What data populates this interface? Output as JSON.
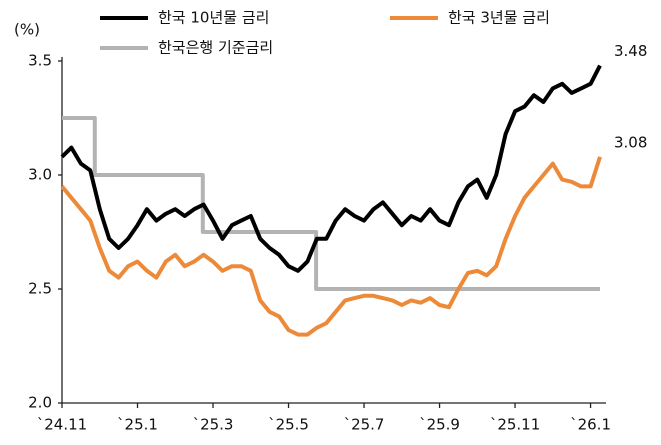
{
  "chart_data": {
    "type": "line",
    "y_label": "(%)",
    "legend": "top",
    "xlim": [
      0,
      14.25
    ],
    "xticks": [
      {
        "value": 0,
        "label": "`24.11"
      },
      {
        "value": 2,
        "label": "`25.1"
      },
      {
        "value": 4,
        "label": "`25.3"
      },
      {
        "value": 6,
        "label": "`25.5"
      },
      {
        "value": 8,
        "label": "`25.7"
      },
      {
        "value": 10,
        "label": "`25.9"
      },
      {
        "value": 12,
        "label": "`25.11"
      },
      {
        "value": 14,
        "label": "`26.1"
      }
    ],
    "ylim": [
      2.0,
      3.5
    ],
    "yticks": [
      {
        "value": 2.0,
        "label": "2.0"
      },
      {
        "value": 2.5,
        "label": "2.5"
      },
      {
        "value": 3.0,
        "label": "3.0"
      },
      {
        "value": 3.5,
        "label": "3.5"
      }
    ],
    "x": [
      0,
      0.25,
      0.5,
      0.75,
      1,
      1.25,
      1.5,
      1.75,
      2,
      2.25,
      2.5,
      2.75,
      3,
      3.25,
      3.5,
      3.75,
      4,
      4.25,
      4.5,
      4.75,
      5,
      5.25,
      5.5,
      5.75,
      6,
      6.25,
      6.5,
      6.75,
      7,
      7.25,
      7.5,
      7.75,
      8,
      8.25,
      8.5,
      8.75,
      9,
      9.25,
      9.5,
      9.75,
      10,
      10.25,
      10.5,
      10.75,
      11,
      11.25,
      11.5,
      11.75,
      12,
      12.25,
      12.5,
      12.75,
      13,
      13.25,
      13.5,
      13.75,
      14,
      14.25
    ],
    "series": [
      {
        "name": "한국 10년물 금리",
        "color": "#000000",
        "values": [
          3.08,
          3.12,
          3.05,
          3.02,
          2.85,
          2.72,
          2.68,
          2.72,
          2.78,
          2.85,
          2.8,
          2.83,
          2.85,
          2.82,
          2.85,
          2.87,
          2.8,
          2.72,
          2.78,
          2.8,
          2.82,
          2.72,
          2.68,
          2.65,
          2.6,
          2.58,
          2.62,
          2.72,
          2.72,
          2.8,
          2.85,
          2.82,
          2.8,
          2.85,
          2.88,
          2.83,
          2.78,
          2.82,
          2.8,
          2.85,
          2.8,
          2.78,
          2.88,
          2.95,
          2.98,
          2.9,
          3.0,
          3.18,
          3.28,
          3.3,
          3.35,
          3.32,
          3.38,
          3.4,
          3.36,
          3.38,
          3.4,
          3.48
        ]
      },
      {
        "name": "한국 3년물 금리",
        "color": "#ed8a3a",
        "values": [
          2.95,
          2.9,
          2.85,
          2.8,
          2.68,
          2.58,
          2.55,
          2.6,
          2.62,
          2.58,
          2.55,
          2.62,
          2.65,
          2.6,
          2.62,
          2.65,
          2.62,
          2.58,
          2.6,
          2.6,
          2.58,
          2.45,
          2.4,
          2.38,
          2.32,
          2.3,
          2.3,
          2.33,
          2.35,
          2.4,
          2.45,
          2.46,
          2.47,
          2.47,
          2.46,
          2.45,
          2.43,
          2.45,
          2.44,
          2.46,
          2.43,
          2.42,
          2.5,
          2.57,
          2.58,
          2.56,
          2.6,
          2.72,
          2.82,
          2.9,
          2.95,
          3.0,
          3.05,
          2.98,
          2.97,
          2.95,
          2.95,
          3.08
        ]
      },
      {
        "name": "한국은행 기준금리",
        "color": "#b3b3b3",
        "x": [
          0,
          0.87,
          0.87,
          3.73,
          3.73,
          6.73,
          6.73,
          14.25
        ],
        "values": [
          3.25,
          3.25,
          3.0,
          3.0,
          2.75,
          2.75,
          2.5,
          2.5
        ]
      }
    ]
  }
}
